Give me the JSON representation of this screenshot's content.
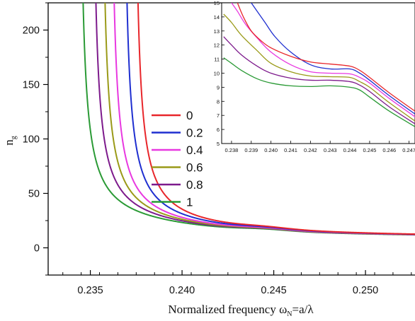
{
  "chart_data": [
    {
      "type": "line",
      "xlabel_main": "Normalized frequency ω",
      "xlabel_sub": "N",
      "xlabel_rest": "=a/λ",
      "ylabel_main": "n",
      "ylabel_sub": "g",
      "xlim": [
        0.2327,
        0.2527
      ],
      "ylim": [
        -25,
        225
      ],
      "xticks": [
        0.235,
        0.24,
        0.245,
        0.25
      ],
      "xtick_labels": [
        "0.235",
        "0.240",
        "0.245",
        "0.250"
      ],
      "yticks": [
        0,
        50,
        100,
        150,
        200
      ],
      "ytick_labels": [
        "0",
        "50",
        "100",
        "150",
        "200"
      ],
      "legend_position": "center",
      "series": [
        {
          "name": "0",
          "color": "#e8262b",
          "x0": 0.2373
        },
        {
          "name": "0.2",
          "color": "#1f2fd0",
          "x0": 0.2367
        },
        {
          "name": "0.4",
          "color": "#e838e0",
          "x0": 0.236
        },
        {
          "name": "0.6",
          "color": "#9a9a18",
          "x0": 0.2355
        },
        {
          "name": "0.8",
          "color": "#7d1a8c",
          "x0": 0.235
        },
        {
          "name": "1",
          "color": "#2a9a35",
          "x0": 0.2343
        }
      ]
    },
    {
      "type": "line",
      "inset": true,
      "xlim": [
        0.2375,
        0.2473
      ],
      "ylim": [
        5,
        15
      ],
      "xticks": [
        0.238,
        0.239,
        0.24,
        0.241,
        0.242,
        0.243,
        0.244,
        0.245,
        0.246,
        0.247
      ],
      "xtick_labels": [
        "0.238",
        "0.239",
        "0.240",
        "0.241",
        "0.242",
        "0.243",
        "0.244",
        "0.245",
        "0.246",
        "0.247"
      ],
      "yticks": [
        5,
        6,
        7,
        8,
        9,
        10,
        11,
        12,
        13,
        14,
        15
      ],
      "ytick_labels": [
        "5",
        "6",
        "7",
        "8",
        "9",
        "10",
        "11",
        "12",
        "13",
        "14",
        "15"
      ],
      "series": [
        {
          "name": "0",
          "color": "#e8262b",
          "points": [
            [
              0.2383,
              15.0
            ],
            [
              0.2386,
              14.0
            ],
            [
              0.239,
              13.0
            ],
            [
              0.2395,
              12.3
            ],
            [
              0.24,
              11.8
            ],
            [
              0.241,
              11.2
            ],
            [
              0.242,
              10.8
            ],
            [
              0.243,
              10.65
            ],
            [
              0.244,
              10.5
            ],
            [
              0.2445,
              10.2
            ],
            [
              0.245,
              9.7
            ],
            [
              0.246,
              8.6
            ],
            [
              0.2473,
              7.3
            ]
          ]
        },
        {
          "name": "0.2",
          "color": "#1f2fd0",
          "points": [
            [
              0.239,
              15.0
            ],
            [
              0.2393,
              14.4
            ],
            [
              0.2397,
              13.6
            ],
            [
              0.2402,
              12.6
            ],
            [
              0.241,
              11.5
            ],
            [
              0.242,
              10.6
            ],
            [
              0.243,
              10.3
            ],
            [
              0.244,
              10.3
            ],
            [
              0.2445,
              10.0
            ],
            [
              0.245,
              9.5
            ],
            [
              0.246,
              8.4
            ],
            [
              0.2473,
              7.1
            ]
          ]
        },
        {
          "name": "0.4",
          "color": "#e838e0",
          "points": [
            [
              0.238,
              15.0
            ],
            [
              0.2383,
              14.4
            ],
            [
              0.2387,
              13.5
            ],
            [
              0.2393,
              12.5
            ],
            [
              0.24,
              11.5
            ],
            [
              0.241,
              10.6
            ],
            [
              0.242,
              10.1
            ],
            [
              0.243,
              10.0
            ],
            [
              0.244,
              9.95
            ],
            [
              0.2445,
              9.7
            ],
            [
              0.245,
              9.3
            ],
            [
              0.246,
              8.2
            ],
            [
              0.2473,
              6.9
            ]
          ]
        },
        {
          "name": "0.6",
          "color": "#9a9a18",
          "points": [
            [
              0.2376,
              14.2
            ],
            [
              0.238,
              13.6
            ],
            [
              0.2385,
              12.7
            ],
            [
              0.2393,
              11.6
            ],
            [
              0.24,
              10.7
            ],
            [
              0.241,
              10.1
            ],
            [
              0.242,
              9.8
            ],
            [
              0.243,
              9.75
            ],
            [
              0.244,
              9.7
            ],
            [
              0.2445,
              9.4
            ],
            [
              0.245,
              9.0
            ],
            [
              0.246,
              7.9
            ],
            [
              0.2473,
              6.6
            ]
          ]
        },
        {
          "name": "0.8",
          "color": "#7d1a8c",
          "points": [
            [
              0.2376,
              12.6
            ],
            [
              0.238,
              12.0
            ],
            [
              0.2385,
              11.3
            ],
            [
              0.2393,
              10.5
            ],
            [
              0.24,
              10.0
            ],
            [
              0.241,
              9.65
            ],
            [
              0.242,
              9.5
            ],
            [
              0.243,
              9.5
            ],
            [
              0.244,
              9.4
            ],
            [
              0.2445,
              9.15
            ],
            [
              0.245,
              8.7
            ],
            [
              0.246,
              7.6
            ],
            [
              0.2473,
              6.4
            ]
          ]
        },
        {
          "name": "1",
          "color": "#2a9a35",
          "points": [
            [
              0.2376,
              11.1
            ],
            [
              0.238,
              10.7
            ],
            [
              0.2385,
              10.2
            ],
            [
              0.2393,
              9.6
            ],
            [
              0.24,
              9.3
            ],
            [
              0.241,
              9.1
            ],
            [
              0.242,
              9.05
            ],
            [
              0.243,
              9.1
            ],
            [
              0.244,
              9.0
            ],
            [
              0.2445,
              8.8
            ],
            [
              0.245,
              8.3
            ],
            [
              0.246,
              7.3
            ],
            [
              0.2473,
              6.2
            ]
          ]
        }
      ]
    }
  ]
}
